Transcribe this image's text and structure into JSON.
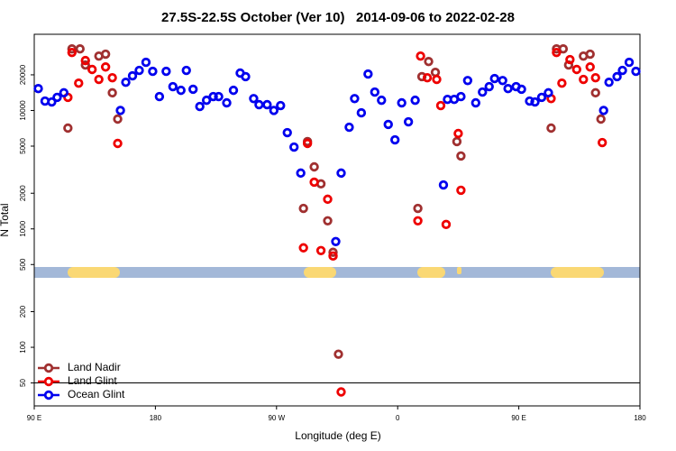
{
  "chart_data": {
    "type": "scatter",
    "title": "27.5S-22.5S October (Ver 10)   2014-09-06 to 2022-02-28",
    "x_label": "Longitude (deg E)",
    "y_label": "N Total",
    "log_y": true,
    "legend": "bottom-left",
    "xlim": [
      90,
      540
    ],
    "ylim": [
      32,
      44000
    ],
    "xticks": [
      {
        "value": 90,
        "label": "90 E"
      },
      {
        "value": 180,
        "label": "180"
      },
      {
        "value": 270,
        "label": "90 W"
      },
      {
        "value": 360,
        "label": "0"
      },
      {
        "value": 450,
        "label": "90 E"
      },
      {
        "value": 540,
        "label": "180"
      }
    ],
    "yticks": [
      50,
      100,
      200,
      500,
      1000,
      2000,
      5000,
      10000,
      20000
    ],
    "reference_line": 50,
    "series": [
      {
        "name": "Land Nadir",
        "color": "#a03030",
        "x": [
          115,
          118,
          124,
          128,
          138,
          143,
          148,
          152,
          290,
          293,
          298,
          303,
          308,
          312,
          316,
          375,
          378,
          383,
          388,
          404,
          407,
          474,
          478,
          483,
          487,
          498,
          503,
          507,
          511
        ],
        "values": [
          7100,
          33100,
          33100,
          24200,
          28800,
          29900,
          14100,
          8460,
          1490,
          5460,
          3340,
          2400,
          1170,
          634,
          87.5,
          1490,
          19300,
          25900,
          21000,
          5460,
          4130,
          7100,
          33100,
          33100,
          24200,
          28800,
          29900,
          14100,
          8460
        ]
      },
      {
        "name": "Land Glint",
        "color": "#ee0000",
        "x": [
          115,
          118,
          123,
          128,
          133,
          138,
          143,
          148,
          152,
          290,
          293,
          298,
          303,
          308,
          312,
          318,
          375,
          377,
          382,
          389,
          392,
          396,
          405,
          407,
          474,
          478,
          482,
          488,
          493,
          498,
          503,
          507,
          512
        ],
        "values": [
          12900,
          30900,
          17000,
          26400,
          22200,
          18300,
          23300,
          18900,
          5270,
          692,
          5270,
          2480,
          656,
          1780,
          590,
          42,
          1170,
          28800,
          18900,
          18300,
          11000,
          1090,
          6390,
          2120,
          12600,
          30900,
          17000,
          26900,
          22200,
          18300,
          23300,
          18900,
          5360
        ]
      },
      {
        "name": "Ocean Glint",
        "color": "#0000ee",
        "x": [
          93,
          98,
          103,
          107,
          112,
          154,
          158,
          163,
          168,
          173,
          178,
          183,
          188,
          193,
          199,
          203,
          208,
          213,
          218,
          223,
          227,
          233,
          238,
          243,
          247,
          253,
          257,
          263,
          268,
          273,
          278,
          283,
          288,
          314,
          318,
          324,
          328,
          333,
          338,
          343,
          348,
          353,
          358,
          363,
          368,
          373,
          394,
          397,
          402,
          407,
          412,
          418,
          423,
          428,
          432,
          438,
          442,
          448,
          452,
          458,
          462,
          467,
          472,
          513,
          517,
          523,
          527,
          532,
          537
        ],
        "values": [
          15300,
          12000,
          11800,
          12900,
          14100,
          10000,
          17300,
          19600,
          21800,
          25500,
          21400,
          13100,
          21400,
          15900,
          14800,
          21800,
          15100,
          10800,
          12200,
          13100,
          13100,
          11600,
          14800,
          20700,
          19300,
          12600,
          11200,
          11200,
          10000,
          11000,
          6500,
          4910,
          2960,
          782,
          2960,
          7220,
          12600,
          9550,
          20300,
          14300,
          12200,
          7620,
          5650,
          11600,
          8020,
          12200,
          2350,
          12400,
          12400,
          13100,
          17900,
          11600,
          14300,
          15900,
          18600,
          17900,
          15300,
          15900,
          15100,
          12000,
          11800,
          12900,
          14100,
          10000,
          17300,
          19300,
          21800,
          25500,
          21400
        ]
      }
    ]
  }
}
